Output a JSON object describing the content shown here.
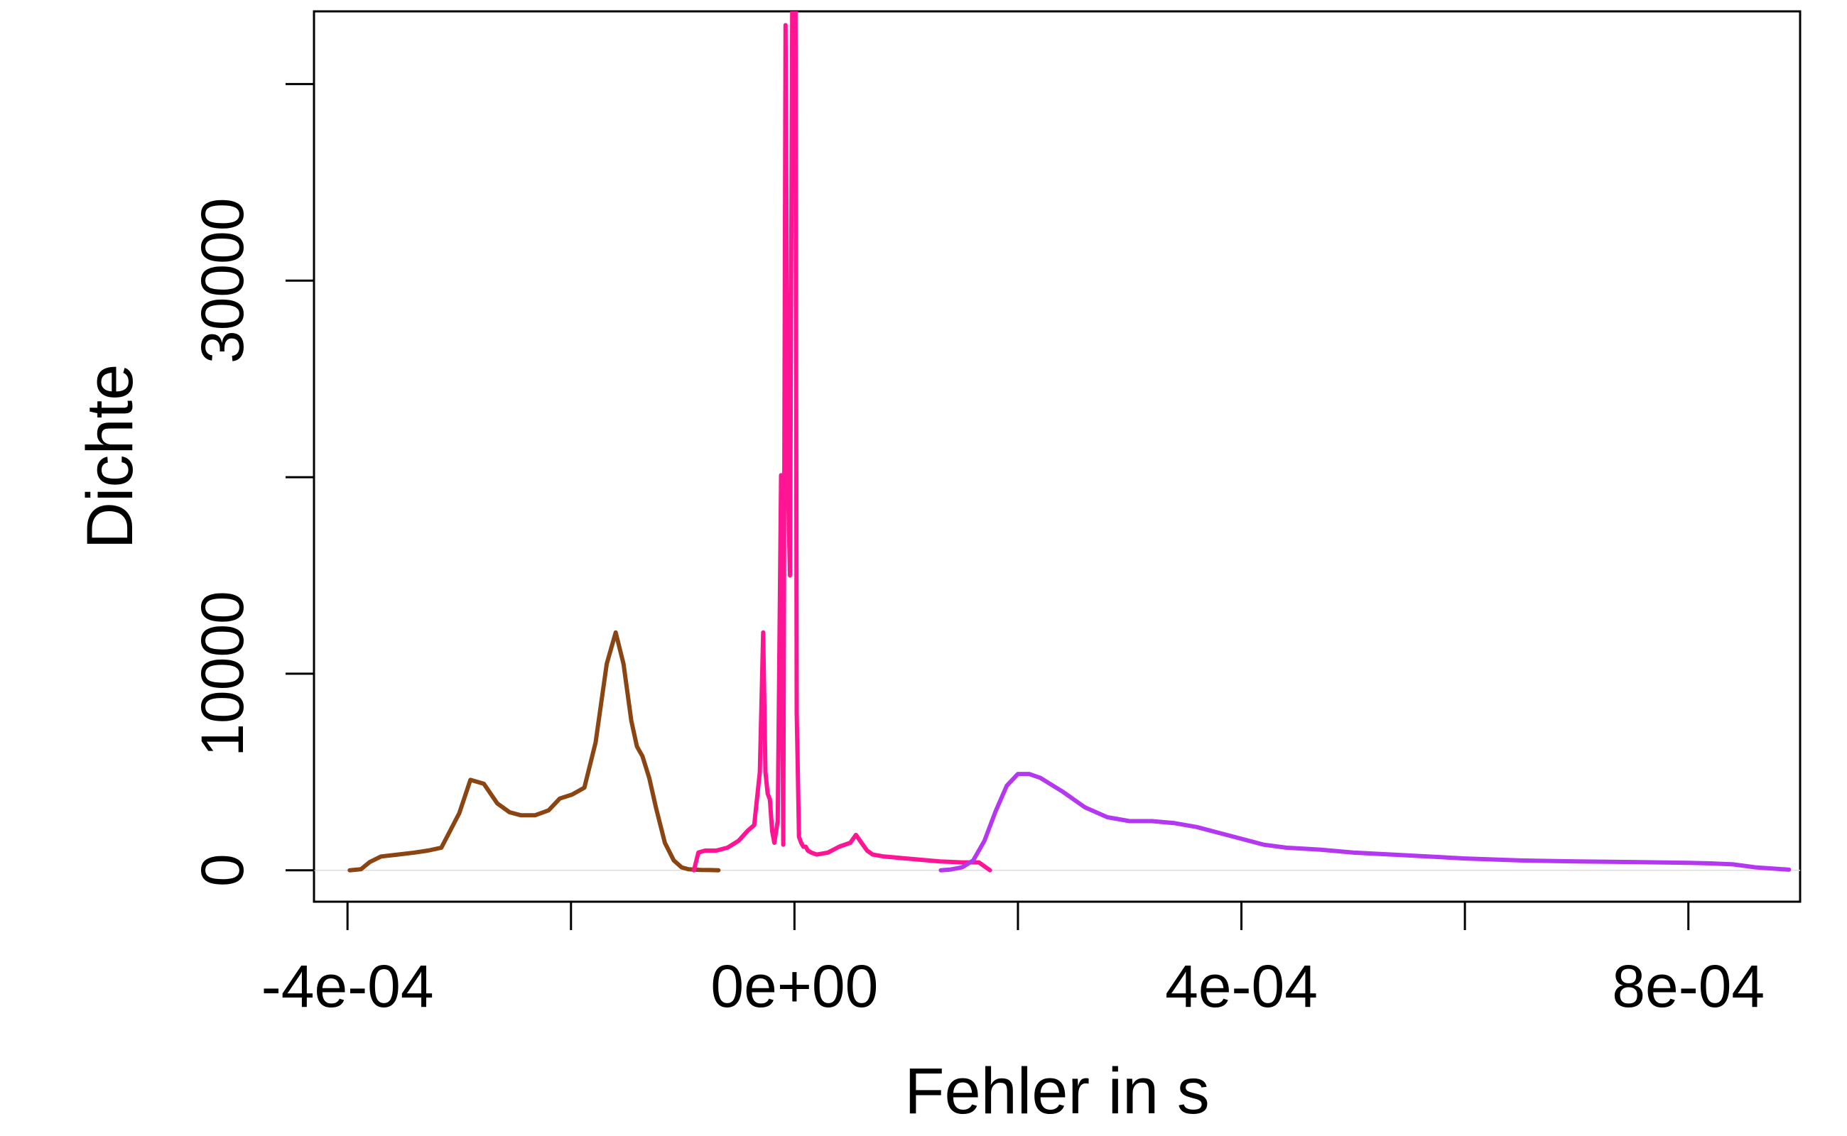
{
  "chart_data": {
    "type": "line",
    "title": "",
    "xlabel": "Fehler in s",
    "ylabel": "Dichte",
    "xlim": [
      -0.00043,
      0.0009
    ],
    "ylim": [
      -1600,
      43700
    ],
    "x_ticks": [
      {
        "value": -0.0004,
        "label": "-4e-04"
      },
      {
        "value": -0.0002,
        "label": ""
      },
      {
        "value": 0.0,
        "label": "0e+00"
      },
      {
        "value": 0.0002,
        "label": ""
      },
      {
        "value": 0.0004,
        "label": "4e-04"
      },
      {
        "value": 0.0006,
        "label": ""
      },
      {
        "value": 0.0008,
        "label": "8e-04"
      }
    ],
    "y_ticks": [
      {
        "value": 0,
        "label": "0"
      },
      {
        "value": 10000,
        "label": "10000"
      },
      {
        "value": 20000,
        "label": ""
      },
      {
        "value": 30000,
        "label": "30000"
      },
      {
        "value": 40000,
        "label": ""
      }
    ],
    "grid": false,
    "legend": "none",
    "baseline": 0,
    "series": [
      {
        "color": "#8B4513",
        "x": [
          -0.000398,
          -0.000388,
          -0.00038,
          -0.00037,
          -0.000355,
          -0.00034,
          -0.000328,
          -0.000316,
          -0.0003,
          -0.00029,
          -0.000278,
          -0.000266,
          -0.000255,
          -0.000245,
          -0.000232,
          -0.00022,
          -0.00021,
          -0.000199,
          -0.000188,
          -0.000178,
          -0.000168,
          -0.00016,
          -0.000153,
          -0.000146,
          -0.000141,
          -0.000136,
          -0.00013,
          -0.000124,
          -0.000116,
          -0.000108,
          -0.000101,
          -9.5e-05,
          -8.9e-05,
          -8.4e-05,
          -7.6e-05,
          -6.8e-05
        ],
        "y": [
          0,
          50,
          420,
          700,
          800,
          900,
          1000,
          1150,
          2900,
          4600,
          4400,
          3400,
          2950,
          2800,
          2800,
          3050,
          3650,
          3850,
          4200,
          6500,
          10500,
          12100,
          10500,
          7600,
          6300,
          5800,
          4700,
          3200,
          1400,
          500,
          150,
          50,
          30,
          20,
          10,
          0
        ]
      },
      {
        "color": "#FF1493",
        "x": [
          -9e-05,
          -8.6e-05,
          -8e-05,
          -7e-05,
          -6e-05,
          -5e-05,
          -4.2e-05,
          -3.6e-05,
          -3.1e-05,
          -2.8e-05,
          -2.6e-05,
          -2.4e-05,
          -2.2e-05,
          -2e-05,
          -1.8e-05,
          -1.5e-05,
          -1.2e-05,
          -1e-05,
          -8e-06,
          -6e-06,
          -4e-06,
          -2e-06,
          0.0,
          1e-06,
          2e-06,
          3e-06,
          4e-06,
          6e-06,
          8e-06,
          1e-05,
          1.2e-05,
          1.5e-05,
          2e-05,
          3e-05,
          4e-05,
          5e-05,
          5.5e-05,
          6e-05,
          6.5e-05,
          7e-05,
          8e-05,
          0.0001,
          0.00013,
          0.00015,
          0.000165,
          0.000175
        ],
        "y": [
          0,
          900,
          1000,
          1000,
          1150,
          1500,
          2000,
          2300,
          5000,
          12100,
          5000,
          3900,
          3600,
          2000,
          1400,
          2500,
          20100,
          1300,
          43000,
          20000,
          15000,
          43700,
          42000,
          43700,
          8000,
          5000,
          1700,
          1400,
          1200,
          1200,
          1000,
          900,
          800,
          900,
          1200,
          1400,
          1800,
          1400,
          1000,
          800,
          700,
          600,
          450,
          400,
          400,
          0
        ]
      },
      {
        "color": "#B338F0",
        "x": [
          0.000131,
          0.00014,
          0.00015,
          0.00016,
          0.00017,
          0.00018,
          0.00019,
          0.0002,
          0.00021,
          0.00022,
          0.00024,
          0.00026,
          0.00028,
          0.0003,
          0.00032,
          0.00034,
          0.00036,
          0.00038,
          0.0004,
          0.00042,
          0.00044,
          0.00047,
          0.0005,
          0.00055,
          0.0006,
          0.00065,
          0.0007,
          0.00075,
          0.0008,
          0.00082,
          0.00084,
          0.00086,
          0.00089
        ],
        "y": [
          0,
          40,
          150,
          500,
          1500,
          3000,
          4300,
          4900,
          4900,
          4700,
          4000,
          3200,
          2700,
          2500,
          2500,
          2400,
          2200,
          1900,
          1600,
          1300,
          1150,
          1050,
          900,
          750,
          600,
          500,
          450,
          420,
          380,
          350,
          300,
          150,
          30
        ]
      }
    ]
  }
}
